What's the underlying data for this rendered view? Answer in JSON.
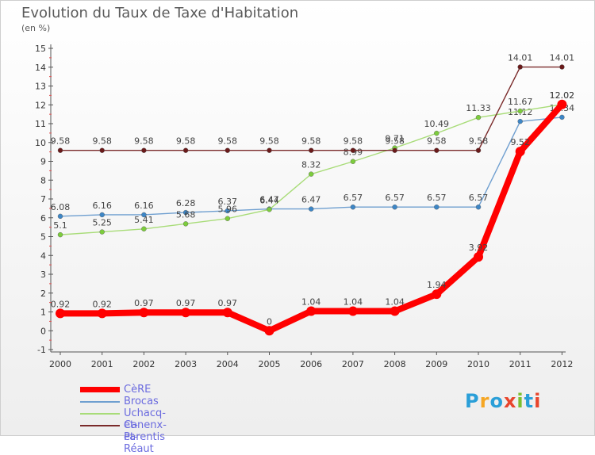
{
  "header": {
    "title": "Evolution du Taux de Taxe d'Habitation",
    "subtitle": "(en %)"
  },
  "brand": {
    "text": "Proxiti",
    "colors": [
      "#2a9fd8",
      "#f5a623",
      "#2a9fd8",
      "#e8452c",
      "#7cbf2f",
      "#2a9fd8",
      "#e8452c"
    ]
  },
  "chart_data": {
    "type": "line",
    "title": "Evolution du Taux de Taxe d'Habitation",
    "ylabel": "(en %)",
    "xlabel": "",
    "ylim": [
      -1,
      15
    ],
    "yticks": [
      "-1",
      "0",
      "1",
      "2",
      "3",
      "4",
      "5",
      "6",
      "7",
      "8",
      "9",
      "10",
      "11",
      "12",
      "13",
      "14",
      "15"
    ],
    "categories": [
      "2000",
      "2001",
      "2002",
      "2003",
      "2004",
      "2005",
      "2006",
      "2007",
      "2008",
      "2009",
      "2010",
      "2011",
      "2012"
    ],
    "grid": false,
    "legend_position": "bottom-left",
    "series": [
      {
        "name": "CèRE",
        "color": "#ff0000",
        "thick": true,
        "values": [
          0.92,
          0.92,
          0.97,
          0.97,
          0.97,
          0,
          1.04,
          1.04,
          1.04,
          1.94,
          3.92,
          9.52,
          12.02
        ],
        "labels": [
          "0.92",
          "0.92",
          "0.97",
          "0.97",
          "0.97",
          "0",
          "1.04",
          "1.04",
          "1.04",
          "1.94",
          "3.92",
          "9.52",
          "12.02"
        ]
      },
      {
        "name": "Brocas",
        "color": "#6f9fd0",
        "marker": "#3d86c6",
        "thick": false,
        "values": [
          6.08,
          6.16,
          6.16,
          6.28,
          6.37,
          6.47,
          6.47,
          6.57,
          6.57,
          6.57,
          6.57,
          11.12,
          11.34
        ],
        "labels": [
          "6.08",
          "6.16",
          "6.16",
          "6.28",
          "6.37",
          "6.47",
          "6.47",
          "6.57",
          "6.57",
          "6.57",
          "6.57",
          "11.12",
          "11.34"
        ]
      },
      {
        "name": "Uchacq-et-Parentis",
        "color": "#a8dc78",
        "marker": "#7ccc3c",
        "thick": false,
        "values": [
          5.1,
          5.25,
          5.41,
          5.68,
          5.96,
          6.44,
          8.32,
          8.99,
          9.71,
          10.49,
          11.33,
          11.67,
          12.02
        ],
        "labels": [
          "5.1",
          "5.25",
          "5.41",
          "5.68",
          "5.96",
          "6.44",
          "8.32",
          "8.99",
          "9.71",
          "10.49",
          "11.33",
          "11.67",
          "12.02"
        ]
      },
      {
        "name": "Canenx-et-Réaut",
        "color": "#7a2a2a",
        "marker": "#6a1a1a",
        "thick": false,
        "values": [
          9.58,
          9.58,
          9.58,
          9.58,
          9.58,
          9.58,
          9.58,
          9.58,
          9.58,
          9.58,
          9.58,
          14.01,
          14.01
        ],
        "labels": [
          "9.58",
          "9.58",
          "9.58",
          "9.58",
          "9.58",
          "9.58",
          "9.58",
          "9.58",
          "9.58",
          "9.58",
          "9.58",
          "14.01",
          "14.01"
        ]
      }
    ]
  }
}
